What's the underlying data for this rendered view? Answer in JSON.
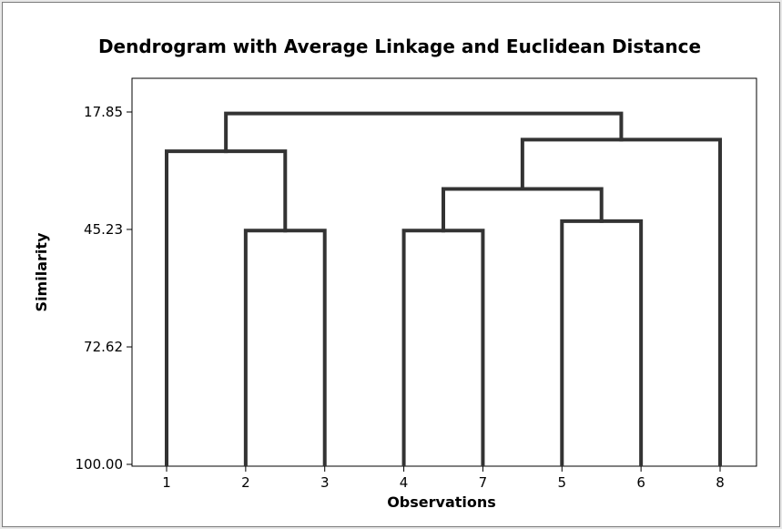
{
  "chart_data": {
    "type": "dendrogram",
    "title": "Dendrogram with Average Linkage and Euclidean Distance",
    "xlabel": "Observations",
    "ylabel": "Similarity",
    "ylim": [
      100.0,
      17.85
    ],
    "yticks": [
      "17.85",
      "45.23",
      "72.62",
      "100.00"
    ],
    "yticks_values": [
      17.85,
      45.23,
      72.62,
      100.0
    ],
    "leaf_order": [
      "1",
      "2",
      "3",
      "4",
      "7",
      "5",
      "6",
      "8"
    ],
    "merges": [
      {
        "left": "2",
        "right": "3",
        "similarity": 45.5
      },
      {
        "left": "4",
        "right": "7",
        "similarity": 45.5
      },
      {
        "left": "5",
        "right": "6",
        "similarity": 43.3
      },
      {
        "left": "1",
        "right": "2,3",
        "similarity": 27.0
      },
      {
        "left": "4,7",
        "right": "5,6",
        "similarity": 35.8
      },
      {
        "left": "4,7,5,6",
        "right": "8",
        "similarity": 24.3
      },
      {
        "left": "1,2,3",
        "right": "4,7,5,6,8",
        "similarity": 18.2
      }
    ],
    "colors": {
      "lines": "#333333",
      "background": "#ffffff"
    }
  }
}
